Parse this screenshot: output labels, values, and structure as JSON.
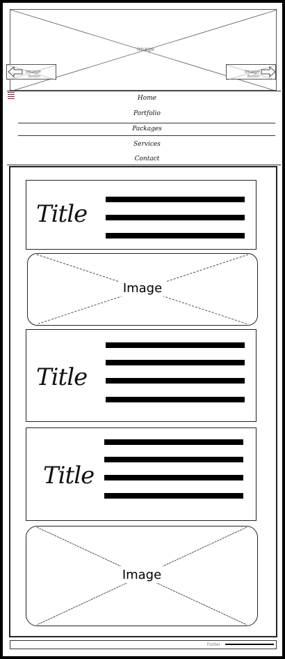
{
  "hero": {
    "label": "Image"
  },
  "hero_buttons": {
    "left": {
      "label": "Image",
      "sub": "Button"
    },
    "right": {
      "label": "Image",
      "sub": "Button"
    }
  },
  "nav": {
    "items": [
      "Home",
      "Portfolio",
      "Packages",
      "Services",
      "Contact"
    ]
  },
  "cards": {
    "c1": {
      "title": "Title"
    },
    "c2": {
      "title": "Title"
    },
    "c3": {
      "title": "Title"
    }
  },
  "images": {
    "i1": {
      "label": "Image"
    },
    "i2": {
      "label": "Image"
    }
  },
  "footer": {
    "label": "Footer"
  }
}
